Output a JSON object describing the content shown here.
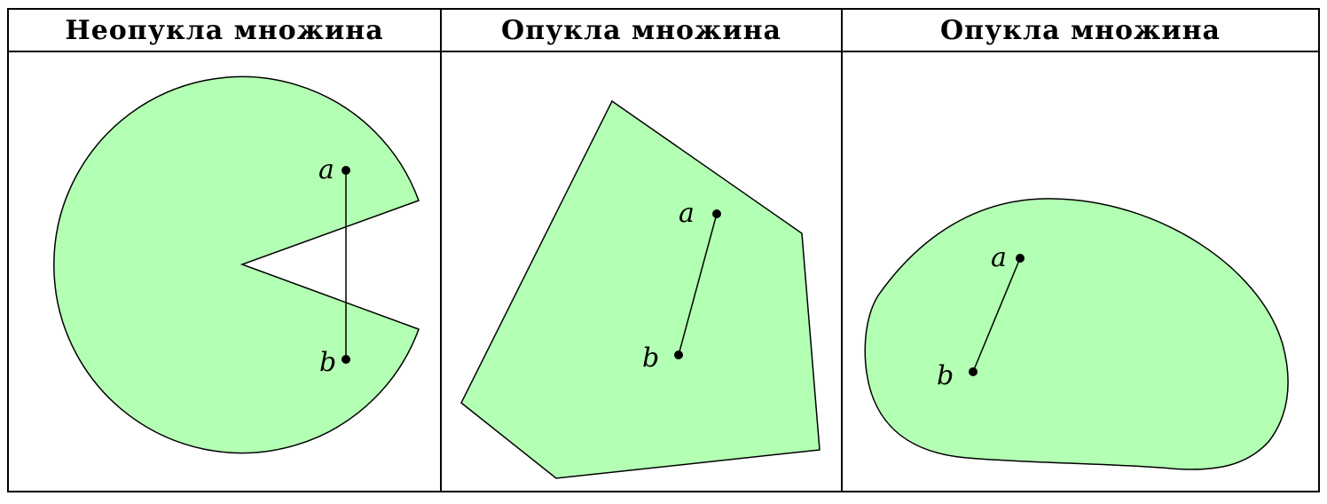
{
  "colors": {
    "shape_fill": "#b3ffb3",
    "stroke": "#000000",
    "background": "#ffffff"
  },
  "panels": [
    {
      "header": "Неопукла множина",
      "point_a": "a",
      "point_b": "b"
    },
    {
      "header": "Опукла множина",
      "point_a": "a",
      "point_b": "b"
    },
    {
      "header": "Опукла множина",
      "point_a": "a",
      "point_b": "b"
    }
  ]
}
